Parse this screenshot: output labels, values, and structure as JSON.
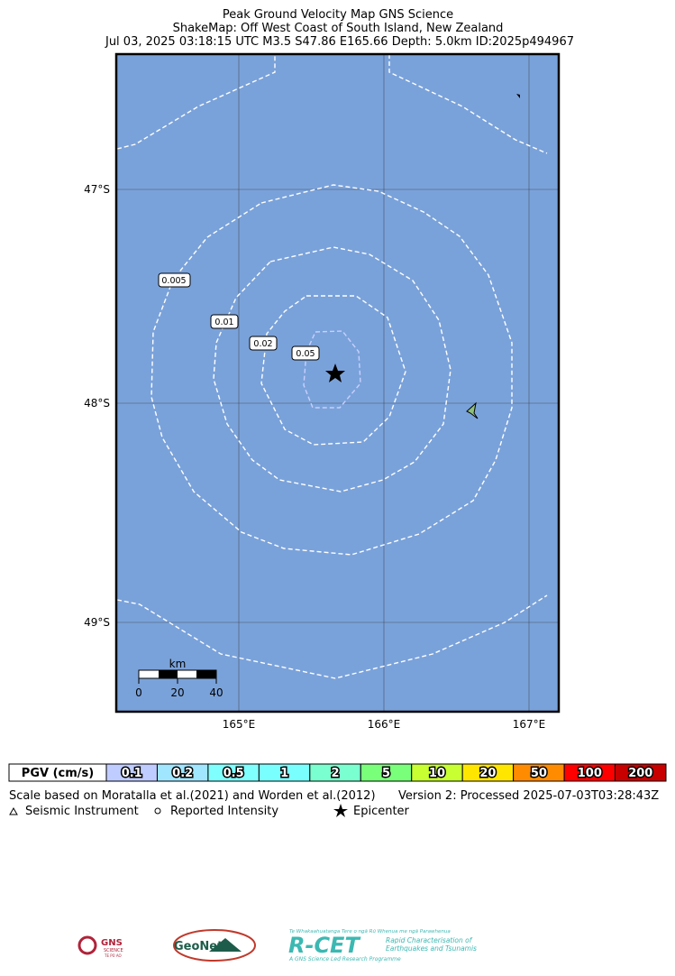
{
  "header": {
    "title": "Peak Ground Velocity Map GNS Science",
    "region": "ShakeMap: Off West Coast of South Island, New Zealand",
    "event": "Jul 03, 2025 03:18:15 UTC M3.5 S47.86 E165.66 Depth: 5.0km ID:2025p494967"
  },
  "map": {
    "lat_labels": [
      "47°S",
      "48°S",
      "49°S"
    ],
    "lon_labels": [
      "165°E",
      "166°E",
      "167°E"
    ],
    "contour_labels": [
      "0.005",
      "0.01",
      "0.02",
      "0.05"
    ],
    "scale_bar": {
      "unit": "km",
      "labels": [
        "0",
        "20",
        "40"
      ]
    }
  },
  "legend": {
    "title": "PGV (cm/s)",
    "items": [
      {
        "label": "0.1",
        "color": "#bfccff"
      },
      {
        "label": "0.2",
        "color": "#a0e6ff"
      },
      {
        "label": "0.5",
        "color": "#80ffff"
      },
      {
        "label": "1",
        "color": "#7affff"
      },
      {
        "label": "2",
        "color": "#7affd0"
      },
      {
        "label": "5",
        "color": "#7aff7a"
      },
      {
        "label": "10",
        "color": "#c8ff32"
      },
      {
        "label": "20",
        "color": "#ffe600"
      },
      {
        "label": "50",
        "color": "#ff8c00"
      },
      {
        "label": "100",
        "color": "#ff0000"
      },
      {
        "label": "200",
        "color": "#c80000"
      }
    ]
  },
  "footer": {
    "scale_note": "Scale based on Moratalla et al.(2021) and Worden et al.(2012)",
    "version": "Version 2: Processed 2025-07-03T03:28:43Z",
    "seismic": "Seismic Instrument",
    "reported": "Reported Intensity",
    "epicenter": "Epicenter"
  },
  "logos": {
    "gns": "GNS",
    "gns_sub": "SCIENCE",
    "gns_maori": "TE PŪ AO",
    "geonet": "GeoNet",
    "rcet_maori": "Te Whakaahuatanga Tere o ngā Rū Whenua me ngā Parawhenua",
    "rcet": "R-CET",
    "rcet_line1": "Rapid Characterisation of",
    "rcet_line2": "Earthquakes and Tsunamis",
    "rcet_sub": "A GNS Science Led Research Programme"
  }
}
